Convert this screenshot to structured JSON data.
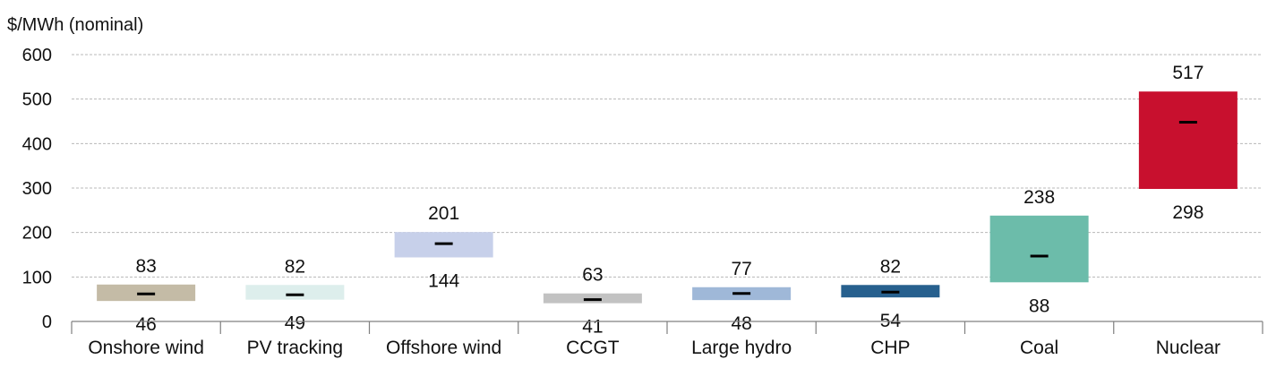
{
  "chart_data": {
    "type": "bar",
    "subtype": "floating-range",
    "ylabel": "$/MWh (nominal)",
    "ylim": [
      0,
      600
    ],
    "yticks": [
      0,
      100,
      200,
      300,
      400,
      500,
      600
    ],
    "grid": true,
    "legend": "none",
    "categories": [
      "Onshore wind",
      "PV tracking",
      "Offshore wind",
      "CCGT",
      "Large hydro",
      "CHP",
      "Coal",
      "Nuclear"
    ],
    "series": [
      {
        "low": [
          46,
          49,
          144,
          41,
          48,
          54,
          88,
          298
        ],
        "high": [
          83,
          82,
          201,
          63,
          77,
          82,
          238,
          517
        ],
        "mid": [
          62,
          60,
          175,
          49,
          63,
          66,
          147,
          448
        ],
        "colors": [
          "#c4bba6",
          "#ddeeec",
          "#c7d0ea",
          "#c2c2c2",
          "#9fb8d8",
          "#27608e",
          "#6cbcaa",
          "#c8102e"
        ]
      }
    ],
    "mid_marker_color": "#000000"
  }
}
